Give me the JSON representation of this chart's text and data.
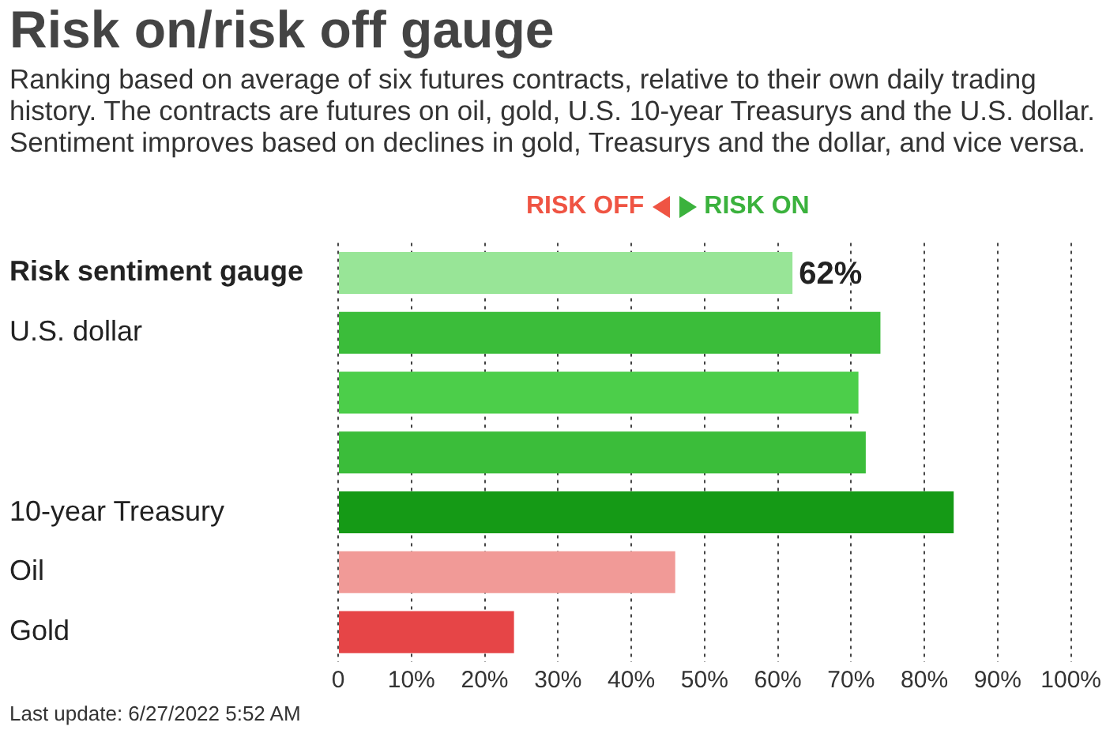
{
  "chart_data": {
    "type": "bar",
    "orientation": "horizontal",
    "title": "Risk on/risk off gauge",
    "subtitle": "Ranking based on average of six futures contracts, relative to their own daily trading history. The contracts are futures on oil, gold, U.S. 10-year Treasurys and the U.S. dollar. Sentiment improves based on declines in gold, Treasurys and the dollar, and vice versa.",
    "annotations": [
      "RISK OFF",
      "RISK ON",
      "Last update: 6/27/2022 5:52 AM"
    ],
    "categories": [
      "Risk sentiment gauge",
      "U.S. dollar",
      null,
      null,
      "10-year Treasury",
      "Oil",
      "Gold"
    ],
    "values": [
      62,
      74,
      71,
      72,
      84,
      46,
      24
    ],
    "colors": [
      "#98e597",
      "#3bbd3a",
      "#4cce4a",
      "#3bbd3a",
      "#159a16",
      "#f19a97",
      "#e64547"
    ],
    "value_labels": [
      "62%",
      null,
      null,
      null,
      null,
      null,
      null
    ],
    "xlim": [
      0,
      100
    ],
    "xticks": [
      {
        "value": 0,
        "label": "0"
      },
      {
        "value": 10,
        "label": "10%"
      },
      {
        "value": 20,
        "label": "20%"
      },
      {
        "value": 30,
        "label": "30%"
      },
      {
        "value": 40,
        "label": "40%"
      },
      {
        "value": 50,
        "label": "50%"
      },
      {
        "value": 60,
        "label": "60%"
      },
      {
        "value": 70,
        "label": "70%"
      },
      {
        "value": 80,
        "label": "80%"
      },
      {
        "value": 90,
        "label": "90%"
      },
      {
        "value": 100,
        "label": "100%"
      }
    ],
    "grid": "x",
    "line_style": "dotted",
    "legend": false
  }
}
